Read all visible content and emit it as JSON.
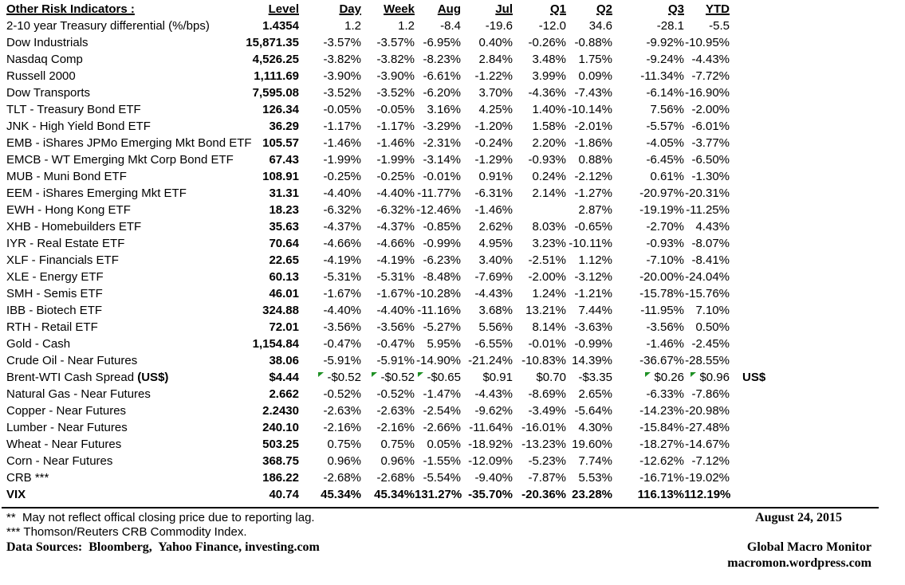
{
  "colors": {
    "text": "#000000",
    "background": "#ffffff",
    "marker_green": "#1f9125"
  },
  "table": {
    "title": "Other Risk Indicators :",
    "columns": [
      "Level",
      "Day",
      "Week",
      "Aug",
      "Jul",
      "Q1",
      "Q2",
      "Q3",
      "YTD"
    ],
    "rows": [
      {
        "name": "2-10 year Treasury differential (%/bps)",
        "values": [
          "1.4354",
          "1.2",
          "1.2",
          "-8.4",
          "-19.6",
          "-12.0",
          "34.6",
          "-28.1",
          "-5.5"
        ]
      },
      {
        "name": "Dow Industrials",
        "values": [
          "15,871.35",
          "-3.57%",
          "-3.57%",
          "-6.95%",
          "0.40%",
          "-0.26%",
          "-0.88%",
          "-9.92%",
          "-10.95%"
        ]
      },
      {
        "name": "Nasdaq Comp",
        "values": [
          "4,526.25",
          "-3.82%",
          "-3.82%",
          "-8.23%",
          "2.84%",
          "3.48%",
          "1.75%",
          "-9.24%",
          "-4.43%"
        ]
      },
      {
        "name": "Russell 2000",
        "values": [
          "1,111.69",
          "-3.90%",
          "-3.90%",
          "-6.61%",
          "-1.22%",
          "3.99%",
          "0.09%",
          "-11.34%",
          "-7.72%"
        ]
      },
      {
        "name": "Dow Transports",
        "values": [
          "7,595.08",
          "-3.52%",
          "-3.52%",
          "-6.20%",
          "3.70%",
          "-4.36%",
          "-7.43%",
          "-6.14%",
          "-16.90%"
        ]
      },
      {
        "name": "TLT - Treasury Bond ETF",
        "values": [
          "126.34",
          "-0.05%",
          "-0.05%",
          "3.16%",
          "4.25%",
          "1.40%",
          "-10.14%",
          "7.56%",
          "-2.00%"
        ]
      },
      {
        "name": "JNK - High Yield Bond ETF",
        "values": [
          "36.29",
          "-1.17%",
          "-1.17%",
          "-3.29%",
          "-1.20%",
          "1.58%",
          "-2.01%",
          "-5.57%",
          "-6.01%"
        ]
      },
      {
        "name": "EMB - iShares JPMo Emerging Mkt Bond ETF",
        "values": [
          "105.57",
          "-1.46%",
          "-1.46%",
          "-2.31%",
          "-0.24%",
          "2.20%",
          "-1.86%",
          "-4.05%",
          "-3.77%"
        ]
      },
      {
        "name": "EMCB - WT Emerging Mkt Corp Bond ETF",
        "values": [
          "67.43",
          "-1.99%",
          "-1.99%",
          "-3.14%",
          "-1.29%",
          "-0.93%",
          "0.88%",
          "-6.45%",
          "-6.50%"
        ]
      },
      {
        "name": "MUB - Muni Bond ETF",
        "values": [
          "108.91",
          "-0.25%",
          "-0.25%",
          "-0.01%",
          "0.91%",
          "0.24%",
          "-2.12%",
          "0.61%",
          "-1.30%"
        ]
      },
      {
        "name": "EEM - iShares Emerging Mkt ETF",
        "values": [
          "31.31",
          "-4.40%",
          "-4.40%",
          "-11.77%",
          "-6.31%",
          "2.14%",
          "-1.27%",
          "-20.97%",
          "-20.31%"
        ]
      },
      {
        "name": "EWH - Hong Kong ETF",
        "values": [
          "18.23",
          "-6.32%",
          "-6.32%",
          "-12.46%",
          "-1.46%",
          "",
          "2.87%",
          "-19.19%",
          "-11.25%"
        ]
      },
      {
        "name": "XHB - Homebuilders ETF",
        "values": [
          "35.63",
          "-4.37%",
          "-4.37%",
          "-0.85%",
          "2.62%",
          "8.03%",
          "-0.65%",
          "-2.70%",
          "4.43%"
        ]
      },
      {
        "name": "IYR - Real Estate ETF",
        "values": [
          "70.64",
          "-4.66%",
          "-4.66%",
          "-0.99%",
          "4.95%",
          "3.23%",
          "-10.11%",
          "-0.93%",
          "-8.07%"
        ]
      },
      {
        "name": "XLF - Financials ETF",
        "values": [
          "22.65",
          "-4.19%",
          "-4.19%",
          "-6.23%",
          "3.40%",
          "-2.51%",
          "1.12%",
          "-7.10%",
          "-8.41%"
        ]
      },
      {
        "name": "XLE - Energy ETF",
        "values": [
          "60.13",
          "-5.31%",
          "-5.31%",
          "-8.48%",
          "-7.69%",
          "-2.00%",
          "-3.12%",
          "-20.00%",
          "-24.04%"
        ]
      },
      {
        "name": "SMH - Semis ETF",
        "values": [
          "46.01",
          "-1.67%",
          "-1.67%",
          "-10.28%",
          "-4.43%",
          "1.24%",
          "-1.21%",
          "-15.78%",
          "-15.76%"
        ]
      },
      {
        "name": "IBB - Biotech ETF",
        "values": [
          "324.88",
          "-4.40%",
          "-4.40%",
          "-11.16%",
          "3.68%",
          "13.21%",
          "7.44%",
          "-11.95%",
          "7.10%"
        ]
      },
      {
        "name": "RTH - Retail ETF",
        "values": [
          "72.01",
          "-3.56%",
          "-3.56%",
          "-5.27%",
          "5.56%",
          "8.14%",
          "-3.63%",
          "-3.56%",
          "0.50%"
        ]
      },
      {
        "name": "Gold - Cash",
        "values": [
          "1,154.84",
          "-0.47%",
          "-0.47%",
          "5.95%",
          "-6.55%",
          "-0.01%",
          "-0.99%",
          "-1.46%",
          "-2.45%"
        ]
      },
      {
        "name": "Crude Oil - Near Futures",
        "values": [
          "38.06",
          "-5.91%",
          "-5.91%",
          "-14.90%",
          "-21.24%",
          "-10.83%",
          "14.39%",
          "-36.67%",
          "-28.55%"
        ]
      },
      {
        "name": "Brent-WTI Cash Spread ",
        "name_bold": "(US$)",
        "values": [
          "$4.44",
          "-$0.52",
          "-$0.52",
          "-$0.65",
          "$0.91",
          "$0.70",
          "-$3.35",
          "$0.26",
          "$0.96"
        ],
        "markers": [
          1,
          2,
          3,
          7,
          8
        ],
        "suffix": "US$"
      },
      {
        "name": "Natural Gas - Near Futures",
        "values": [
          "2.662",
          "-0.52%",
          "-0.52%",
          "-1.47%",
          "-4.43%",
          "-8.69%",
          "2.65%",
          "-6.33%",
          "-7.86%"
        ]
      },
      {
        "name": "Copper - Near Futures",
        "values": [
          "2.2430",
          "-2.63%",
          "-2.63%",
          "-2.54%",
          "-9.62%",
          "-3.49%",
          "-5.64%",
          "-14.23%",
          "-20.98%"
        ]
      },
      {
        "name": "Lumber - Near Futures",
        "values": [
          "240.10",
          "-2.16%",
          "-2.16%",
          "-2.66%",
          "-11.64%",
          "-16.01%",
          "4.30%",
          "-15.84%",
          "-27.48%"
        ]
      },
      {
        "name": "Wheat - Near Futures",
        "values": [
          "503.25",
          "0.75%",
          "0.75%",
          "0.05%",
          "-18.92%",
          "-13.23%",
          "19.60%",
          "-18.27%",
          "-14.67%"
        ]
      },
      {
        "name": "Corn - Near Futures",
        "values": [
          "368.75",
          "0.96%",
          "0.96%",
          "-1.55%",
          "-12.09%",
          "-5.23%",
          "7.74%",
          "-12.62%",
          "-7.12%"
        ]
      },
      {
        "name": "CRB ***",
        "values": [
          "186.22",
          "-2.68%",
          "-2.68%",
          "-5.54%",
          "-9.40%",
          "-7.87%",
          "5.53%",
          "-16.71%",
          "-19.02%"
        ]
      },
      {
        "name": "VIX",
        "bold": true,
        "values": [
          "40.74",
          "45.34%",
          "45.34%",
          "131.27%",
          "-35.70%",
          "-20.36%",
          "23.28%",
          "116.13%",
          "112.19%"
        ]
      }
    ]
  },
  "footnotes": {
    "reporting_lag": "**  May not reflect offical closing price due to reporting lag.",
    "crb": "*** Thomson/Reuters CRB Commodity Index.",
    "sources": "Data Sources:  Bloomberg,  Yahoo Finance, investing.com"
  },
  "footer": {
    "date": "August 24, 2015",
    "publisher": "Global Macro Monitor",
    "website": "macromon.wordpress.com"
  }
}
